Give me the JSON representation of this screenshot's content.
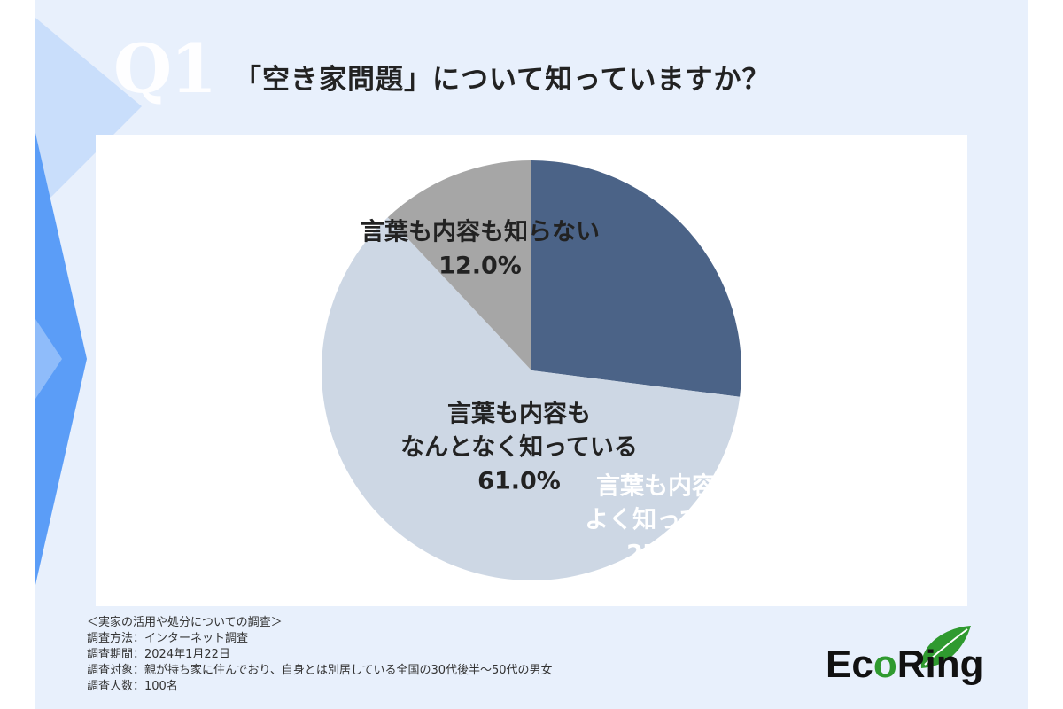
{
  "question": {
    "label": "Q1",
    "text": "「空き家問題」について知っていますか？"
  },
  "chart_data": {
    "type": "pie",
    "slices": [
      {
        "label_lines": [
          "言葉も内容も",
          "よく知っている"
        ],
        "value": 27.0,
        "value_label": "27.0%",
        "color": "#4b6387",
        "text_color": "#ffffff"
      },
      {
        "label_lines": [
          "言葉も内容も",
          "なんとなく知っている"
        ],
        "value": 61.0,
        "value_label": "61.0%",
        "color": "#cdd7e4",
        "text_color": "#222222"
      },
      {
        "label_lines": [
          "言葉も内容も知らない"
        ],
        "value": 12.0,
        "value_label": "12.0%",
        "color": "#a6a6a6",
        "text_color": "#222222"
      }
    ]
  },
  "notes": {
    "title": "＜実家の活用や処分についての調査＞",
    "method": "調査方法：インターネット調査",
    "period": "調査期間：2024年1月22日",
    "target": "調査対象：親が持ち家に住んでおり、自身とは別居している全国の30代後半〜50代の男女",
    "count": "調査人数：100名"
  },
  "logo": {
    "text_start": "Ec",
    "ring_letter": "o",
    "text_end": "Ring"
  },
  "colors": {
    "background": "#e8f0fc",
    "panel": "#ffffff",
    "accent_blue": "#5b9df7",
    "slice_dark": "#4b6387",
    "slice_light": "#cdd7e4",
    "slice_gray": "#a6a6a6",
    "logo_green": "#2f9a2f"
  }
}
